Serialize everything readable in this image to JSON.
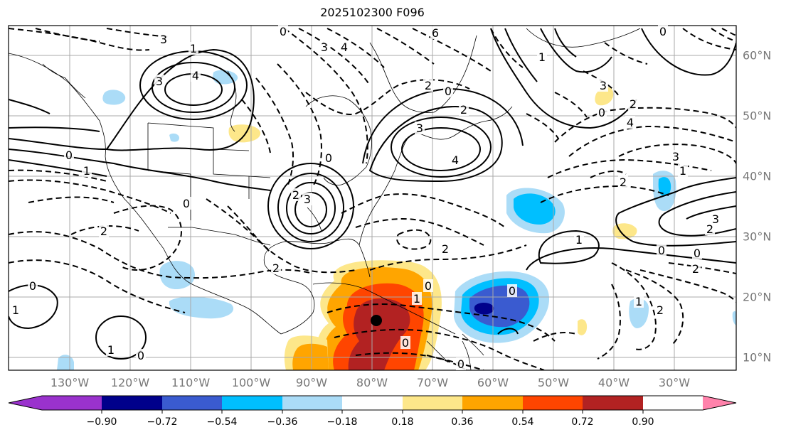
{
  "title": "2025102300 F096",
  "lon_labels": [
    "130°W",
    "120°W",
    "110°W",
    "100°W",
    "90°W",
    "80°W",
    "70°W",
    "60°W",
    "50°W",
    "40°W",
    "30°W"
  ],
  "lat_labels": [
    "60°N",
    "50°N",
    "40°N",
    "30°N",
    "20°N",
    "10°N"
  ],
  "colorbar": {
    "ticks": [
      "−0.90",
      "−0.72",
      "−0.54",
      "−0.36",
      "−0.18",
      "0.18",
      "0.36",
      "0.54",
      "0.72",
      "0.90"
    ],
    "colors": [
      "#9a32cd",
      "#00008b",
      "#3a5bd0",
      "#00bfff",
      "#abdcf7",
      "#ffffff",
      "#fde78a",
      "#ffa500",
      "#ff4500",
      "#b22222",
      "#ff82ab"
    ]
  },
  "contour_labels": [
    {
      "text": "3",
      "at": [
        230,
        55
      ]
    },
    {
      "text": "1",
      "at": [
        272,
        68
      ]
    },
    {
      "text": "4",
      "at": [
        275,
        106
      ]
    },
    {
      "text": "3",
      "at": [
        224,
        114
      ]
    },
    {
      "text": "0",
      "at": [
        97,
        218
      ]
    },
    {
      "text": "1",
      "at": [
        122,
        240
      ]
    },
    {
      "text": "0",
      "at": [
        262,
        286
      ]
    },
    {
      "text": "2",
      "at": [
        146,
        325
      ]
    },
    {
      "text": "2",
      "at": [
        416,
        274
      ]
    },
    {
      "text": "3",
      "at": [
        432,
        280
      ]
    },
    {
      "text": "2",
      "at": [
        388,
        377
      ]
    },
    {
      "text": "0",
      "at": [
        46,
        402
      ]
    },
    {
      "text": "1",
      "at": [
        22,
        436
      ]
    },
    {
      "text": "1",
      "at": [
        156,
        492
      ]
    },
    {
      "text": "0",
      "at": [
        198,
        500
      ]
    },
    {
      "text": "0",
      "at": [
        398,
        44
      ]
    },
    {
      "text": "3",
      "at": [
        456,
        66
      ]
    },
    {
      "text": "4",
      "at": [
        484,
        66
      ]
    },
    {
      "text": "6",
      "at": [
        612,
        46
      ]
    },
    {
      "text": "2",
      "at": [
        602,
        120
      ]
    },
    {
      "text": "0",
      "at": [
        630,
        128
      ]
    },
    {
      "text": "2",
      "at": [
        652,
        154
      ]
    },
    {
      "text": "3",
      "at": [
        590,
        180
      ]
    },
    {
      "text": "4",
      "at": [
        640,
        225
      ]
    },
    {
      "text": "0",
      "at": [
        462,
        222
      ]
    },
    {
      "text": "2",
      "at": [
        626,
        350
      ]
    },
    {
      "text": "0",
      "at": [
        602,
        402
      ]
    },
    {
      "text": "1",
      "at": [
        586,
        420
      ]
    },
    {
      "text": "0",
      "at": [
        570,
        482
      ]
    },
    {
      "text": "0",
      "at": [
        648,
        512
      ]
    },
    {
      "text": "0",
      "at": [
        720,
        409
      ]
    },
    {
      "text": "1",
      "at": [
        814,
        337
      ]
    },
    {
      "text": "0",
      "at": [
        930,
        352
      ]
    },
    {
      "text": "0",
      "at": [
        980,
        356
      ]
    },
    {
      "text": "2",
      "at": [
        978,
        378
      ]
    },
    {
      "text": "2",
      "at": [
        998,
        322
      ]
    },
    {
      "text": "3",
      "at": [
        1006,
        308
      ]
    },
    {
      "text": "1",
      "at": [
        960,
        240
      ]
    },
    {
      "text": "3",
      "at": [
        950,
        220
      ]
    },
    {
      "text": "2",
      "at": [
        876,
        256
      ]
    },
    {
      "text": "4",
      "at": [
        886,
        172
      ]
    },
    {
      "text": "2",
      "at": [
        890,
        146
      ]
    },
    {
      "text": "3",
      "at": [
        848,
        120
      ]
    },
    {
      "text": "0",
      "at": [
        846,
        158
      ]
    },
    {
      "text": "0",
      "at": [
        932,
        44
      ]
    },
    {
      "text": "1",
      "at": [
        898,
        424
      ]
    },
    {
      "text": "2",
      "at": [
        928,
        436
      ]
    },
    {
      "text": "1",
      "at": [
        762,
        80
      ]
    }
  ]
}
